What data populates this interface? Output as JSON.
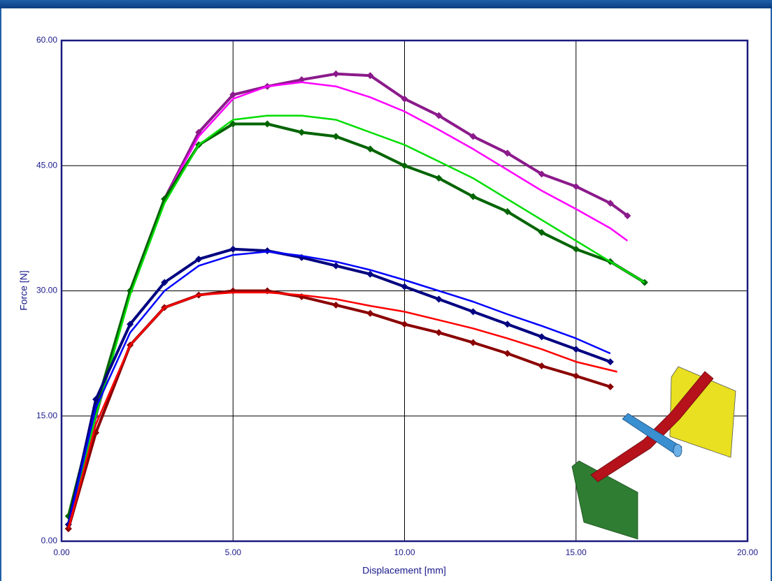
{
  "chart_data": {
    "type": "line",
    "xlabel": "Displacement [mm]",
    "ylabel": "Force [N]",
    "xlim": [
      0,
      20
    ],
    "ylim": [
      0,
      60
    ],
    "xticks": [
      {
        "value": 0,
        "label": "0.00"
      },
      {
        "value": 5,
        "label": "5.00"
      },
      {
        "value": 10,
        "label": "10.00"
      },
      {
        "value": 15,
        "label": "15.00"
      },
      {
        "value": 20,
        "label": "20.00"
      }
    ],
    "yticks": [
      {
        "value": 0,
        "label": "0.00"
      },
      {
        "value": 15,
        "label": "15.00"
      },
      {
        "value": 30,
        "label": "30.00"
      },
      {
        "value": 45,
        "label": "45.00"
      },
      {
        "value": 60,
        "label": "60.00"
      }
    ],
    "grid": true,
    "series": [
      {
        "color": "#8b1a8b",
        "marker": "diamond",
        "x": [
          0.2,
          1,
          2,
          3,
          4,
          5,
          6,
          7,
          8,
          9,
          10,
          11,
          12,
          13,
          14,
          15,
          16,
          16.5
        ],
        "values": [
          1.5,
          15,
          30,
          41,
          49,
          53.5,
          54.5,
          55.3,
          56,
          55.8,
          53,
          51,
          48.5,
          46.5,
          44,
          42.5,
          40.5,
          39
        ]
      },
      {
        "color": "#ff00ff",
        "marker": "none",
        "x": [
          0.2,
          1,
          2,
          3,
          4,
          5,
          6,
          7,
          8,
          9,
          10,
          11,
          12,
          13,
          14,
          15,
          16,
          16.5
        ],
        "values": [
          1.5,
          15,
          30,
          41,
          48.5,
          53,
          54.5,
          55,
          54.5,
          53.2,
          51.5,
          49.3,
          47,
          44.5,
          42,
          39.8,
          37.5,
          36
        ]
      },
      {
        "color": "#006400",
        "marker": "diamond",
        "x": [
          0.2,
          1,
          2,
          3,
          4,
          5,
          6,
          7,
          8,
          9,
          10,
          11,
          12,
          13,
          14,
          15,
          16,
          17
        ],
        "values": [
          3,
          16,
          30,
          41,
          47.5,
          50,
          50,
          49,
          48.5,
          47,
          45,
          43.5,
          41.3,
          39.5,
          37,
          35,
          33.5,
          31
        ]
      },
      {
        "color": "#00dd00",
        "marker": "none",
        "x": [
          0.2,
          1,
          2,
          3,
          4,
          5,
          6,
          7,
          8,
          9,
          10,
          11,
          12,
          13,
          14,
          15,
          16,
          17
        ],
        "values": [
          2,
          15,
          29.5,
          40.5,
          47.5,
          50.5,
          51,
          51,
          50.5,
          49,
          47.5,
          45.5,
          43.5,
          41,
          38.5,
          36,
          33.5,
          31
        ]
      },
      {
        "color": "#000080",
        "marker": "diamond",
        "x": [
          0.2,
          1,
          2,
          3,
          4,
          5,
          6,
          7,
          8,
          9,
          10,
          11,
          12,
          13,
          14,
          15,
          16
        ],
        "values": [
          2,
          17,
          26,
          31,
          33.8,
          35,
          34.8,
          34,
          33,
          32,
          30.5,
          29,
          27.5,
          26,
          24.5,
          23,
          21.5
        ]
      },
      {
        "color": "#0000ff",
        "marker": "none",
        "x": [
          0.2,
          1,
          2,
          3,
          4,
          5,
          6,
          7,
          8,
          9,
          10,
          11,
          12,
          13,
          14,
          15,
          16
        ],
        "values": [
          2,
          16,
          25,
          30,
          33,
          34.3,
          34.7,
          34.2,
          33.5,
          32.5,
          31.3,
          30,
          28.7,
          27.2,
          25.8,
          24.3,
          22.5
        ]
      },
      {
        "color": "#8b0000",
        "marker": "diamond",
        "x": [
          0.2,
          1,
          2,
          3,
          4,
          5,
          6,
          7,
          8,
          9,
          10,
          11,
          12,
          13,
          14,
          15,
          16
        ],
        "values": [
          1.5,
          13,
          23.5,
          28,
          29.5,
          30,
          30,
          29.3,
          28.3,
          27.3,
          26,
          25,
          23.8,
          22.5,
          21,
          19.8,
          18.5
        ]
      },
      {
        "color": "#ff0000",
        "marker": "none",
        "x": [
          0.2,
          1,
          2,
          3,
          4,
          5,
          6,
          7,
          8,
          9,
          10,
          11,
          12,
          13,
          14,
          15,
          16.2
        ],
        "values": [
          1.5,
          14,
          23.5,
          28,
          29.5,
          29.8,
          29.8,
          29.5,
          29,
          28.2,
          27.5,
          26.5,
          25.5,
          24.3,
          23,
          21.5,
          20.3
        ]
      }
    ]
  }
}
